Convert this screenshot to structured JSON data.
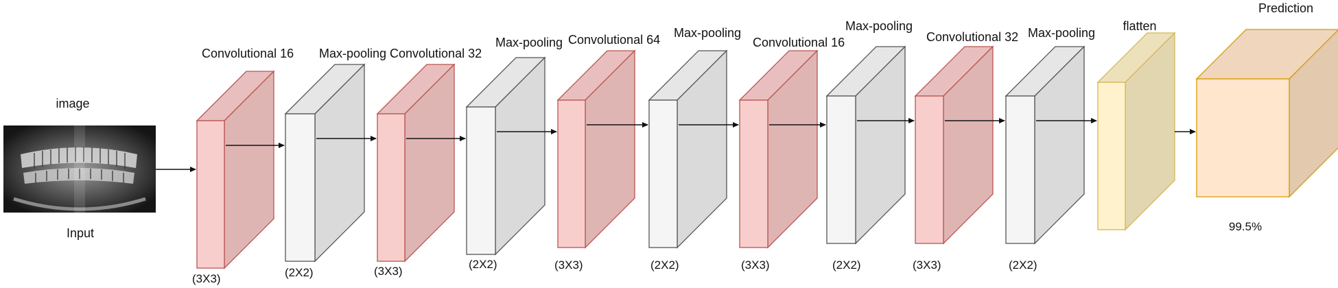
{
  "input": {
    "title": "image",
    "caption": "Input"
  },
  "colors": {
    "conv": {
      "front": "#f8cecc",
      "side": "#dfb5b4",
      "top": "#e8bfbe",
      "stroke": "#b85450"
    },
    "pool": {
      "front": "#f5f5f5",
      "side": "#dadada",
      "top": "#e6e6e6",
      "stroke": "#555555"
    },
    "flatten": {
      "front": "#fff2cc",
      "side": "#e2d6b0",
      "top": "#ede1bb",
      "stroke": "#d6b656"
    },
    "output": {
      "front": "#ffe6cc",
      "side": "#e3c9ae",
      "top": "#efd6bd",
      "stroke": "#d79b00"
    }
  },
  "layers": [
    {
      "type": "conv",
      "label": "Convolutional 16",
      "kernel": "(3X3)"
    },
    {
      "type": "pool",
      "label": "Max-pooling",
      "kernel": "(2X2)"
    },
    {
      "type": "conv",
      "label": "Convolutional 32",
      "kernel": "(3X3)"
    },
    {
      "type": "pool",
      "label": "Max-pooling",
      "kernel": "(2X2)"
    },
    {
      "type": "conv",
      "label": "Convolutional  64",
      "kernel": "(3X3)"
    },
    {
      "type": "pool",
      "label": "Max-pooling",
      "kernel": "(2X2)"
    },
    {
      "type": "conv",
      "label": "Convolutional 16",
      "kernel": "(3X3)"
    },
    {
      "type": "pool",
      "label": "Max-pooling",
      "kernel": "(2X2)"
    },
    {
      "type": "conv",
      "label": "Convolutional  32",
      "kernel": "(3X3)"
    },
    {
      "type": "pool",
      "label": "Max-pooling",
      "kernel": "(2X2)"
    }
  ],
  "flatten": {
    "label": "flatten"
  },
  "output": {
    "label": "Prediction",
    "value": "99.5%"
  }
}
